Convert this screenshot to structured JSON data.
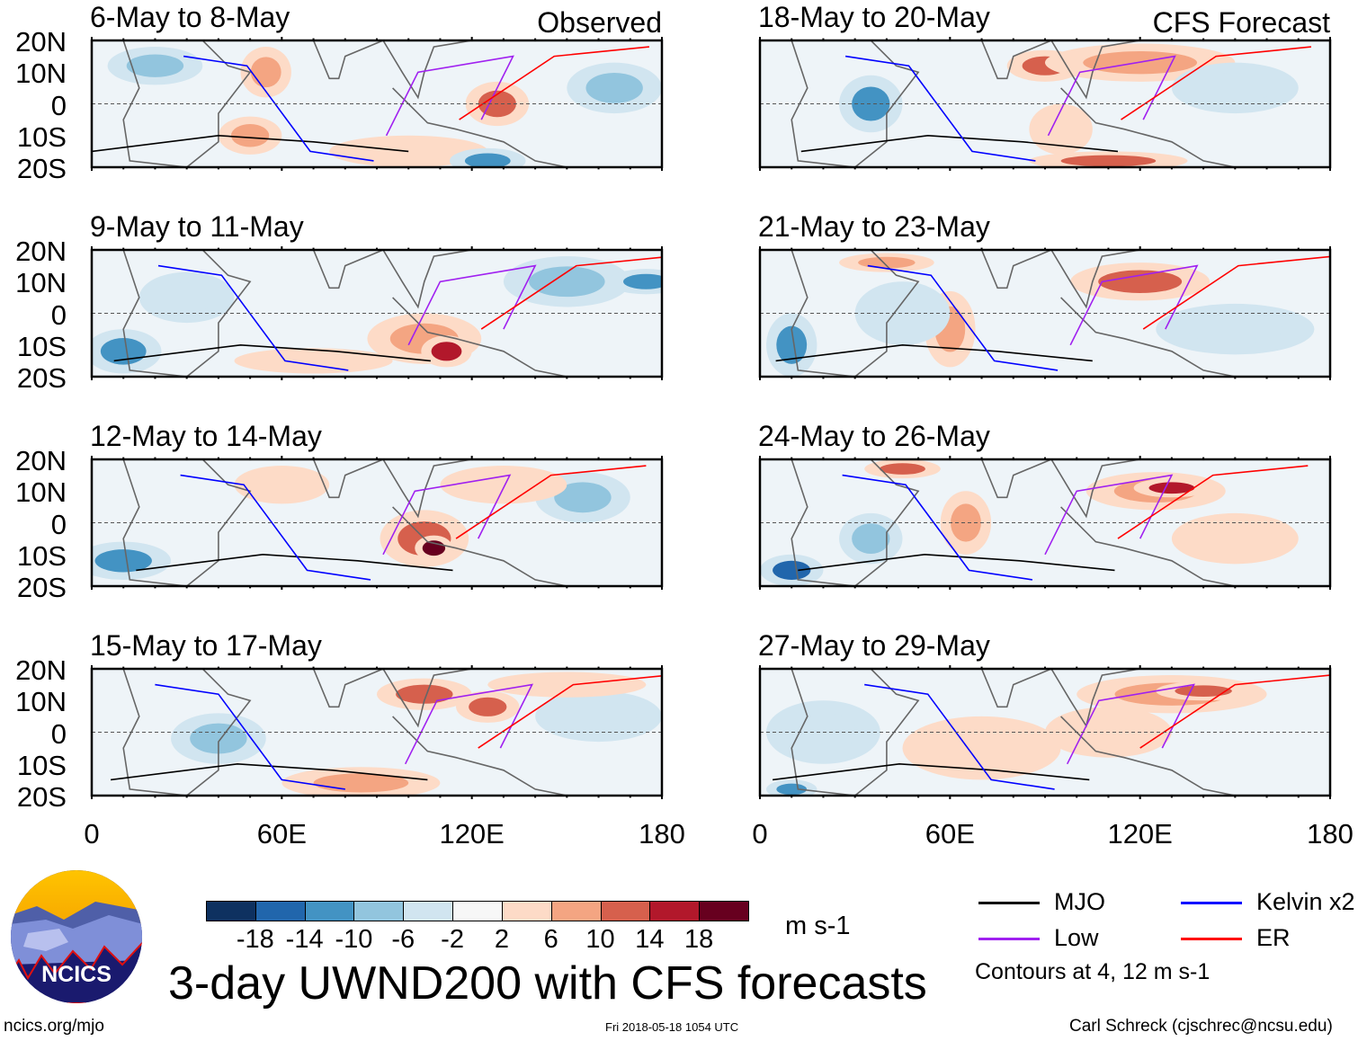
{
  "panels": [
    {
      "title": "6-May to 8-May",
      "tag": "Observed"
    },
    {
      "title": "9-May to 11-May"
    },
    {
      "title": "12-May to 14-May"
    },
    {
      "title": "15-May to 17-May"
    },
    {
      "title": "18-May to 20-May",
      "tag": "CFS Forecast"
    },
    {
      "title": "21-May to 23-May"
    },
    {
      "title": "24-May to 26-May"
    },
    {
      "title": "27-May to 29-May"
    }
  ],
  "lat_labels": [
    "20N",
    "10N",
    "0",
    "10S",
    "20S"
  ],
  "lon_labels": [
    "0",
    "60E",
    "120E",
    "180"
  ],
  "colorbar": {
    "colors": [
      "#0e3160",
      "#2166ac",
      "#4393c3",
      "#92c5de",
      "#d1e5f0",
      "#f7f7f7",
      "#fddbc7",
      "#f4a582",
      "#d6604d",
      "#b2182b",
      "#67001f"
    ],
    "labels": [
      "-18",
      "-14",
      "-10",
      "-6",
      "-2",
      "2",
      "6",
      "10",
      "14",
      "18"
    ],
    "units": "m s-1"
  },
  "title": "3-day UWND200 with CFS forecasts",
  "legend": {
    "items": [
      {
        "label": "MJO",
        "color": "#000000"
      },
      {
        "label": "Kelvin x2",
        "color": "#0000ff"
      },
      {
        "label": "Low",
        "color": "#a020f0"
      },
      {
        "label": "ER",
        "color": "#ff0000"
      }
    ],
    "note": "Contours at 4, 12 m s-1"
  },
  "logo": {
    "text": "NCICS"
  },
  "footer": {
    "url": "ncics.org/mjo",
    "timestamp": "Fri 2018-05-18 1054 UTC",
    "credit": "Carl Schreck (cjschrec@ncsu.edu)"
  }
}
